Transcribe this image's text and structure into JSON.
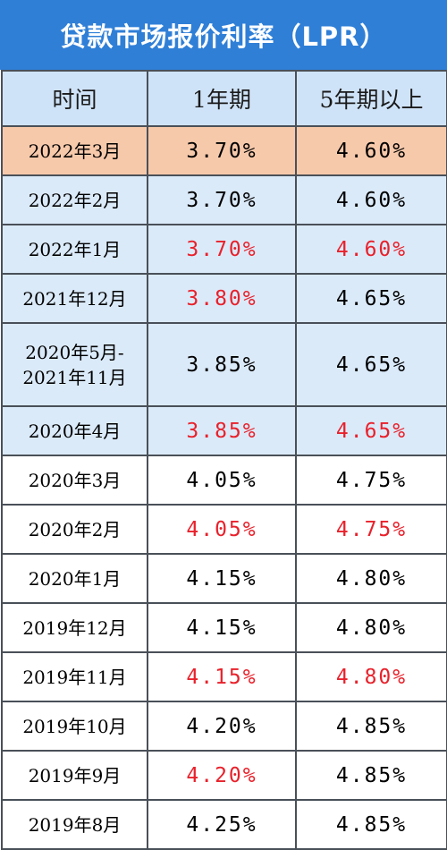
{
  "title": "贷款市场报价利率（LPR）",
  "columns": [
    "时间",
    "1年期",
    "5年期以上"
  ],
  "rows": [
    {
      "date": "2022年3月",
      "one_year": "3.70%",
      "five_year": "4.60%",
      "bg": "orange",
      "one_red": false,
      "five_red": false
    },
    {
      "date": "2022年2月",
      "one_year": "3.70%",
      "five_year": "4.60%",
      "bg": "blue",
      "one_red": false,
      "five_red": false
    },
    {
      "date": "2022年1月",
      "one_year": "3.70%",
      "five_year": "4.60%",
      "bg": "blue",
      "one_red": true,
      "five_red": true
    },
    {
      "date": "2021年12月",
      "one_year": "3.80%",
      "five_year": "4.65%",
      "bg": "blue",
      "one_red": true,
      "five_red": false
    },
    {
      "date": "2020年5月-\n2021年11月",
      "one_year": "3.85%",
      "five_year": "4.65%",
      "bg": "blue",
      "one_red": false,
      "five_red": false
    },
    {
      "date": "2020年4月",
      "one_year": "3.85%",
      "five_year": "4.65%",
      "bg": "blue",
      "one_red": true,
      "five_red": true
    },
    {
      "date": "2020年3月",
      "one_year": "4.05%",
      "five_year": "4.75%",
      "bg": "white",
      "one_red": false,
      "five_red": false
    },
    {
      "date": "2020年2月",
      "one_year": "4.05%",
      "five_year": "4.75%",
      "bg": "white",
      "one_red": true,
      "five_red": true
    },
    {
      "date": "2020年1月",
      "one_year": "4.15%",
      "five_year": "4.80%",
      "bg": "white",
      "one_red": false,
      "five_red": false
    },
    {
      "date": "2019年12月",
      "one_year": "4.15%",
      "five_year": "4.80%",
      "bg": "white",
      "one_red": false,
      "five_red": false
    },
    {
      "date": "2019年11月",
      "one_year": "4.15%",
      "five_year": "4.80%",
      "bg": "white",
      "one_red": true,
      "five_red": true
    },
    {
      "date": "2019年10月",
      "one_year": "4.20%",
      "five_year": "4.85%",
      "bg": "white",
      "one_red": false,
      "five_red": false
    },
    {
      "date": "2019年9月",
      "one_year": "4.20%",
      "five_year": "4.85%",
      "bg": "white",
      "one_red": true,
      "five_red": false
    },
    {
      "date": "2019年8月",
      "one_year": "4.25%",
      "five_year": "4.85%",
      "bg": "white",
      "one_red": false,
      "five_red": false
    }
  ],
  "colors": {
    "title_bg": "#2f7fd7",
    "header_bg": "#cfe3f8",
    "row_orange": "#f7c9ab",
    "row_blue": "#dbeaf9",
    "red_text": "#e8212b"
  }
}
